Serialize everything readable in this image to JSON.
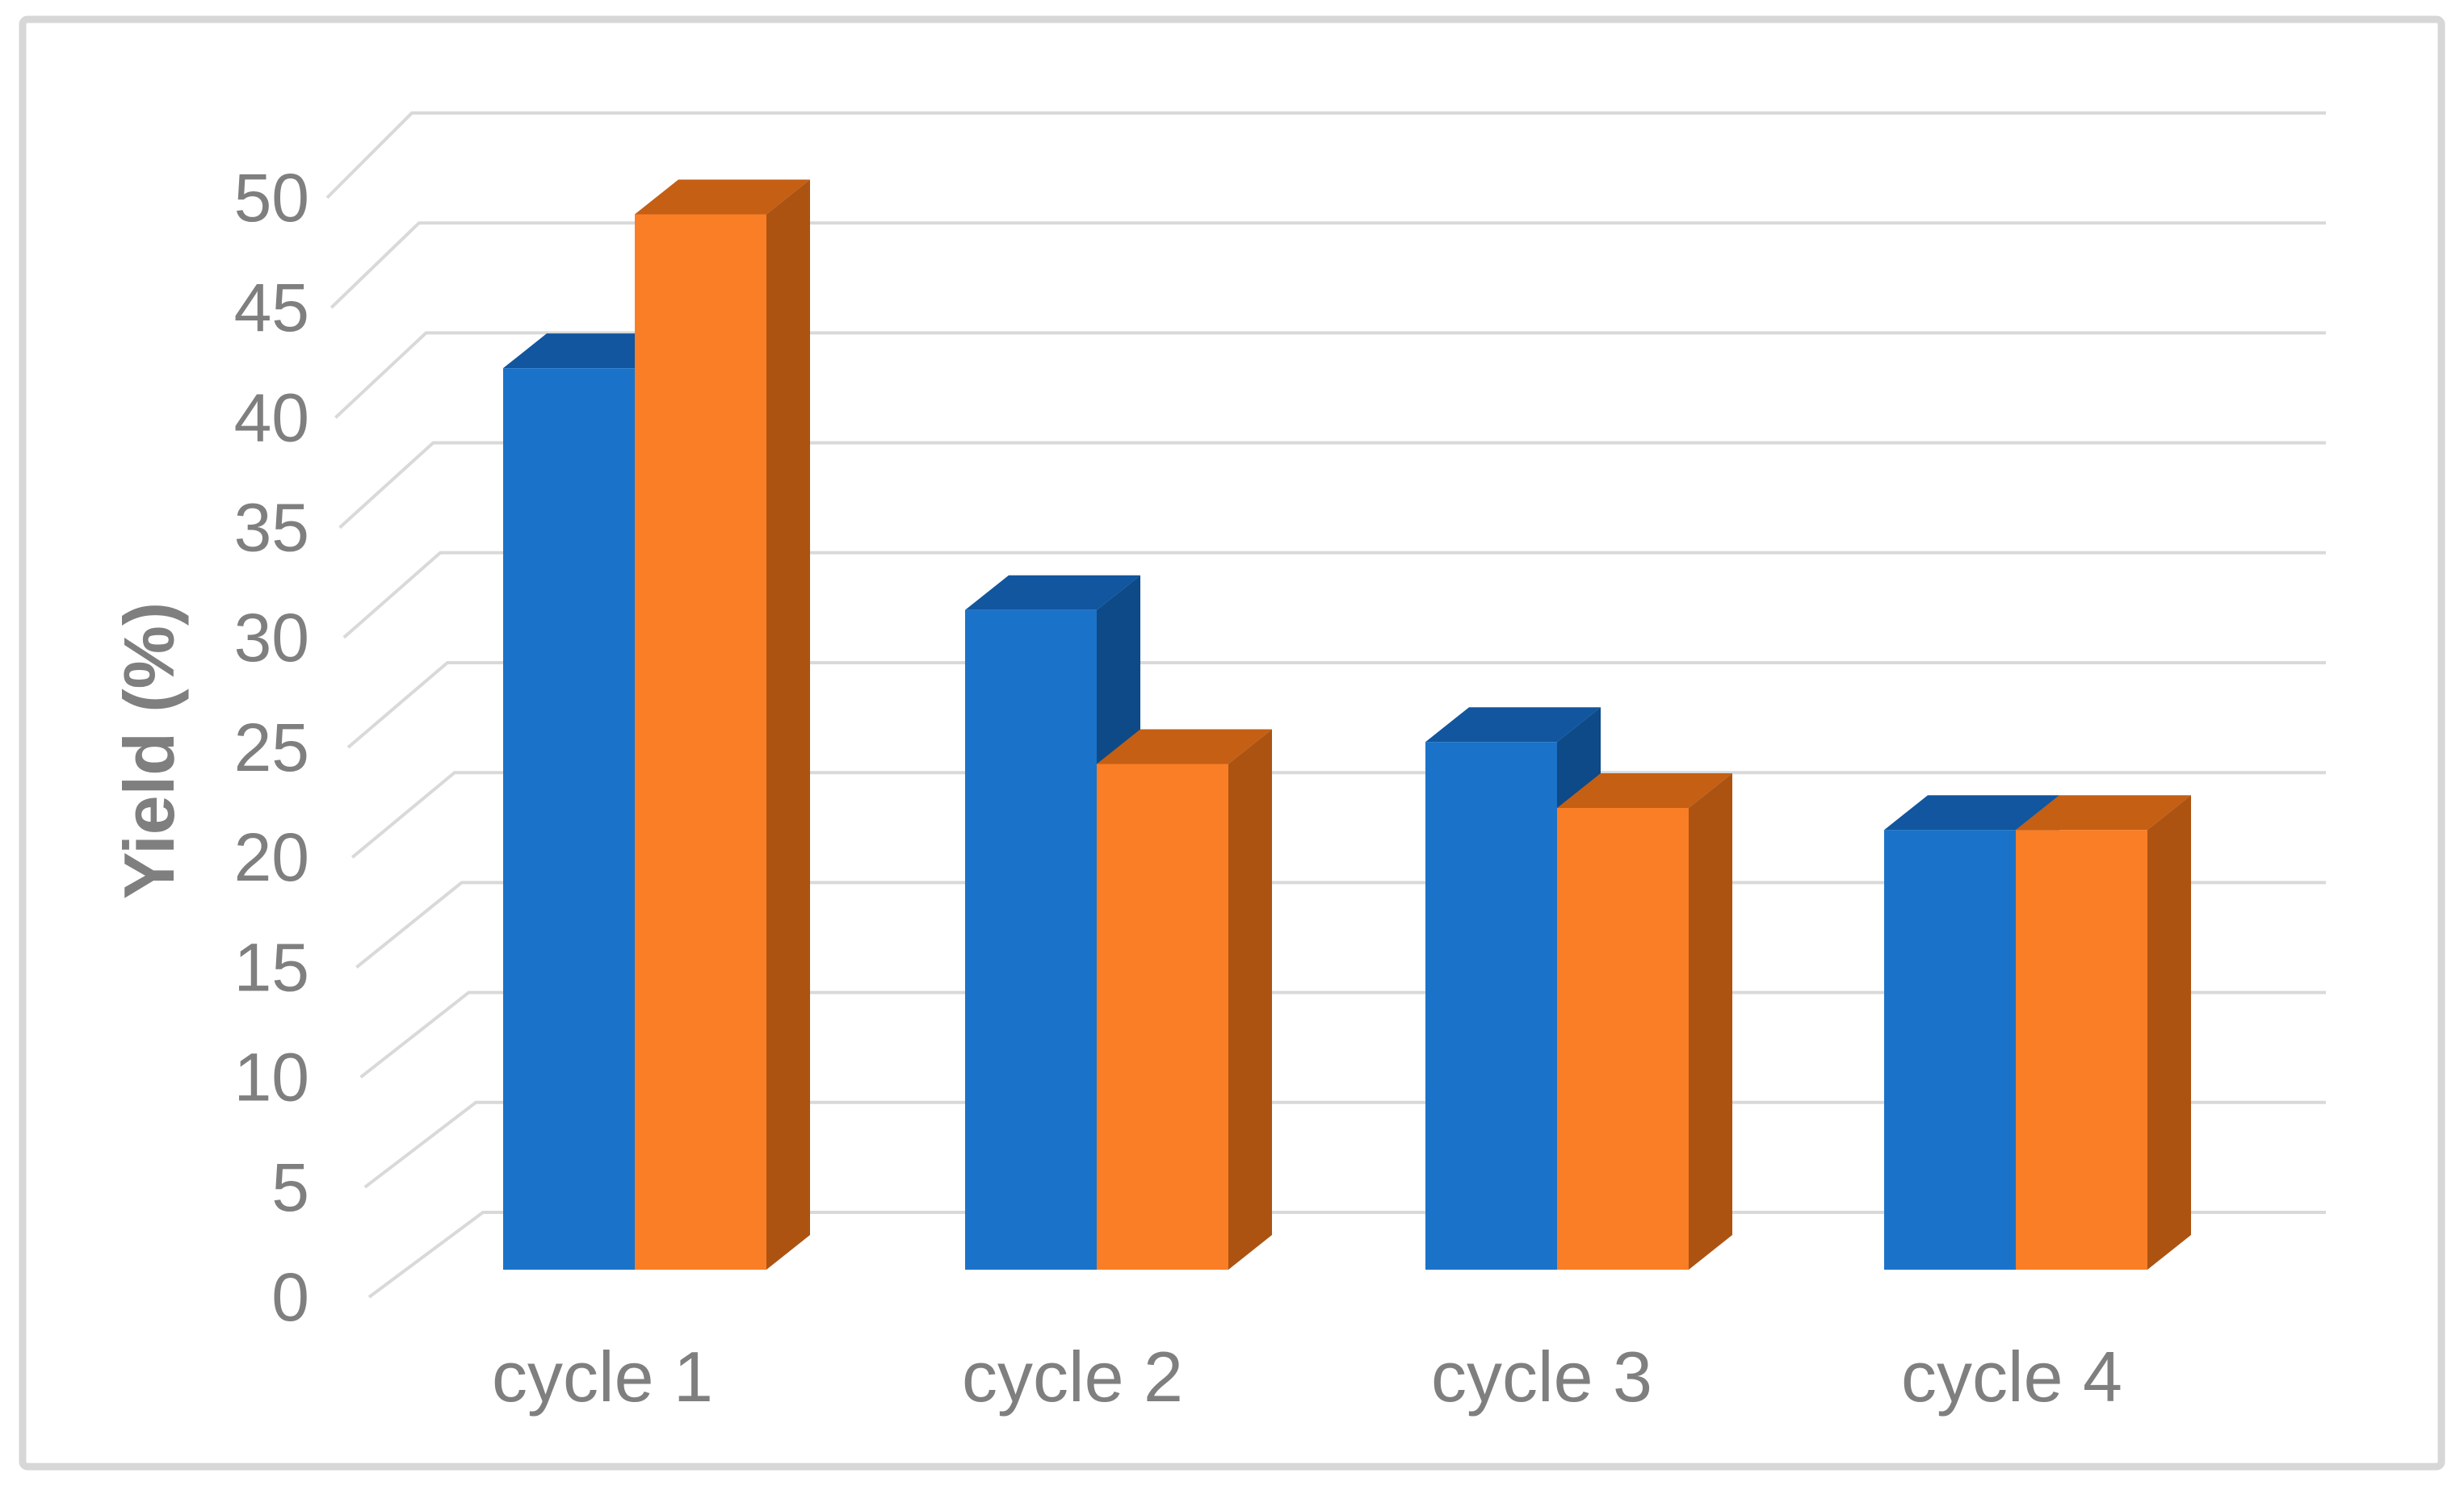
{
  "figure": {
    "background": "#ffffff",
    "border_color": "#d7d7d7"
  },
  "colors": {
    "blue_front": "#1a73c9",
    "blue_top": "#11569e",
    "blue_side": "#0d4a87",
    "orange_front": "#f97e26",
    "orange_top": "#c45f14",
    "orange_side": "#ac5312",
    "gridline": "#d9d9d9",
    "label": "#7f7f7f"
  },
  "chart_data": {
    "type": "bar",
    "variant": "3d-clustered-column",
    "title": "",
    "xlabel": "",
    "ylabel": "Yield (%)",
    "categories": [
      "cycle 1",
      "cycle 2",
      "cycle 3",
      "cycle 4"
    ],
    "series": [
      {
        "name": "blue-series",
        "color": "#1a73c9",
        "values": [
          41,
          30,
          24,
          20
        ]
      },
      {
        "name": "orange-series",
        "color": "#f97e26",
        "values": [
          48,
          23,
          21,
          20
        ]
      }
    ],
    "ylim": [
      0,
      50
    ],
    "ytick_step": 5,
    "yticks": [
      0,
      5,
      10,
      15,
      20,
      25,
      30,
      35,
      40,
      45,
      50
    ],
    "grid": true,
    "legend": false
  }
}
